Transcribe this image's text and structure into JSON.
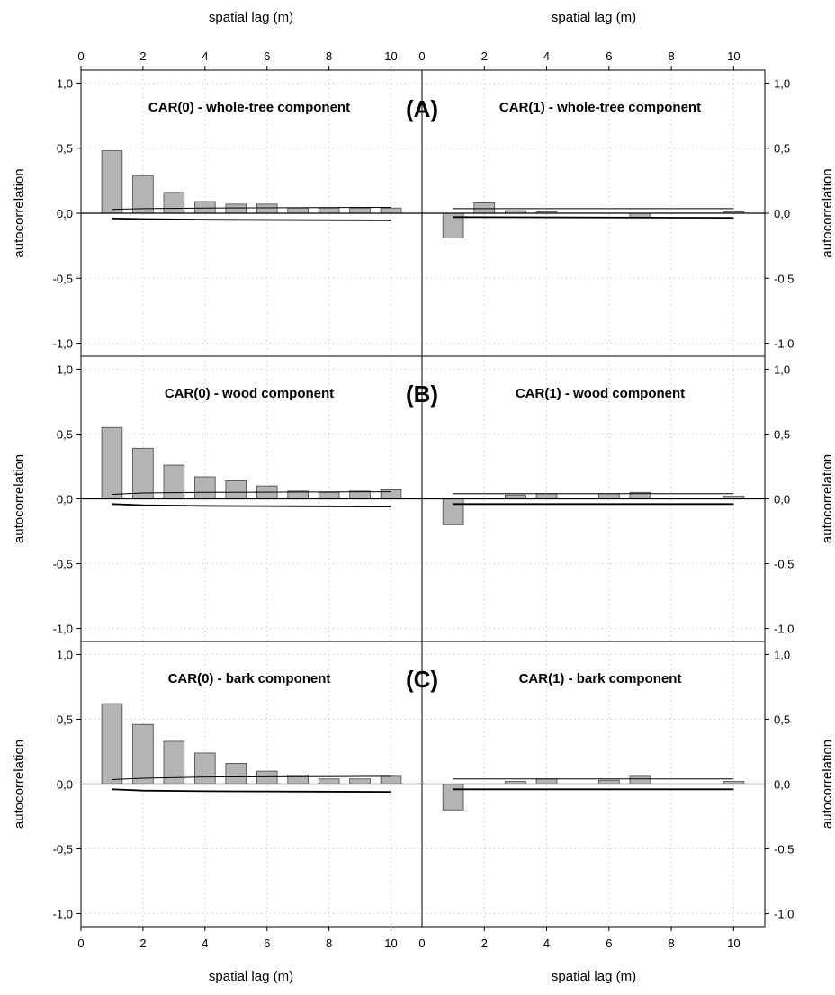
{
  "chart_data": {
    "type": "bar",
    "layout": "3 rows x 2 columns of correlogram panels with confidence-band lines",
    "grid": true,
    "x_axis": {
      "label": "spatial lag (m)",
      "range": [
        0,
        11
      ],
      "ticks": [
        "0",
        "2",
        "4",
        "6",
        "8",
        "10"
      ],
      "shown_on": "top and bottom"
    },
    "y_axis": {
      "label": "autocorrelation",
      "range": [
        -1.1,
        1.1
      ],
      "ticks": [
        "-1,0",
        "-0,5",
        "0,0",
        "0,5",
        "1,0"
      ],
      "shown_on": "left and right"
    },
    "colors": {
      "bar_fill": "#b4b4b4",
      "bar_stroke": "#444444",
      "line": "#000000",
      "grid": "#bbbbbb"
    },
    "row_labels": [
      "(A)",
      "(B)",
      "(C)"
    ],
    "panels": [
      {
        "title": "CAR(0) - whole-tree component",
        "lags": [
          1,
          2,
          3,
          4,
          5,
          6,
          7,
          8,
          9,
          10
        ],
        "values": [
          0.48,
          0.29,
          0.16,
          0.09,
          0.07,
          0.07,
          0.04,
          0.04,
          0.04,
          0.04
        ],
        "upper_band": [
          [
            1,
            0.03
          ],
          [
            2,
            0.035
          ],
          [
            4,
            0.04
          ],
          [
            10,
            0.045
          ]
        ],
        "lower_band": [
          [
            1,
            -0.04
          ],
          [
            2,
            -0.045
          ],
          [
            4,
            -0.05
          ],
          [
            10,
            -0.055
          ]
        ]
      },
      {
        "title": "CAR(1) - whole-tree component",
        "lags": [
          1,
          2,
          3,
          4,
          5,
          6,
          7,
          8,
          9,
          10
        ],
        "values": [
          -0.19,
          0.08,
          0.02,
          0.01,
          0.0,
          0.0,
          -0.03,
          0.0,
          0.0,
          0.01
        ],
        "upper_band": [
          [
            1,
            0.035
          ],
          [
            10,
            0.035
          ]
        ],
        "lower_band": [
          [
            1,
            -0.03
          ],
          [
            10,
            -0.035
          ]
        ]
      },
      {
        "title": "CAR(0) - wood component",
        "lags": [
          1,
          2,
          3,
          4,
          5,
          6,
          7,
          8,
          9,
          10
        ],
        "values": [
          0.55,
          0.39,
          0.26,
          0.17,
          0.14,
          0.1,
          0.06,
          0.05,
          0.06,
          0.07
        ],
        "upper_band": [
          [
            1,
            0.035
          ],
          [
            2,
            0.045
          ],
          [
            4,
            0.05
          ],
          [
            10,
            0.055
          ]
        ],
        "lower_band": [
          [
            1,
            -0.04
          ],
          [
            2,
            -0.05
          ],
          [
            4,
            -0.055
          ],
          [
            10,
            -0.06
          ]
        ]
      },
      {
        "title": "CAR(1) - wood component",
        "lags": [
          1,
          2,
          3,
          4,
          5,
          6,
          7,
          8,
          9,
          10
        ],
        "values": [
          -0.2,
          0.0,
          0.03,
          0.04,
          0.0,
          0.04,
          0.05,
          0.0,
          0.0,
          0.02
        ],
        "upper_band": [
          [
            1,
            0.04
          ],
          [
            10,
            0.04
          ]
        ],
        "lower_band": [
          [
            1,
            -0.04
          ],
          [
            10,
            -0.04
          ]
        ]
      },
      {
        "title": "CAR(0) - bark component",
        "lags": [
          1,
          2,
          3,
          4,
          5,
          6,
          7,
          8,
          9,
          10
        ],
        "values": [
          0.62,
          0.46,
          0.33,
          0.24,
          0.16,
          0.1,
          0.07,
          0.04,
          0.04,
          0.06
        ],
        "upper_band": [
          [
            1,
            0.035
          ],
          [
            2,
            0.045
          ],
          [
            4,
            0.055
          ],
          [
            10,
            0.06
          ]
        ],
        "lower_band": [
          [
            1,
            -0.04
          ],
          [
            2,
            -0.05
          ],
          [
            4,
            -0.055
          ],
          [
            10,
            -0.06
          ]
        ]
      },
      {
        "title": "CAR(1) - bark component",
        "lags": [
          1,
          2,
          3,
          4,
          5,
          6,
          7,
          8,
          9,
          10
        ],
        "values": [
          -0.2,
          0.0,
          0.02,
          0.04,
          0.0,
          0.03,
          0.06,
          0.0,
          0.0,
          0.02
        ],
        "upper_band": [
          [
            1,
            0.04
          ],
          [
            10,
            0.04
          ]
        ],
        "lower_band": [
          [
            1,
            -0.04
          ],
          [
            10,
            -0.04
          ]
        ]
      }
    ]
  }
}
